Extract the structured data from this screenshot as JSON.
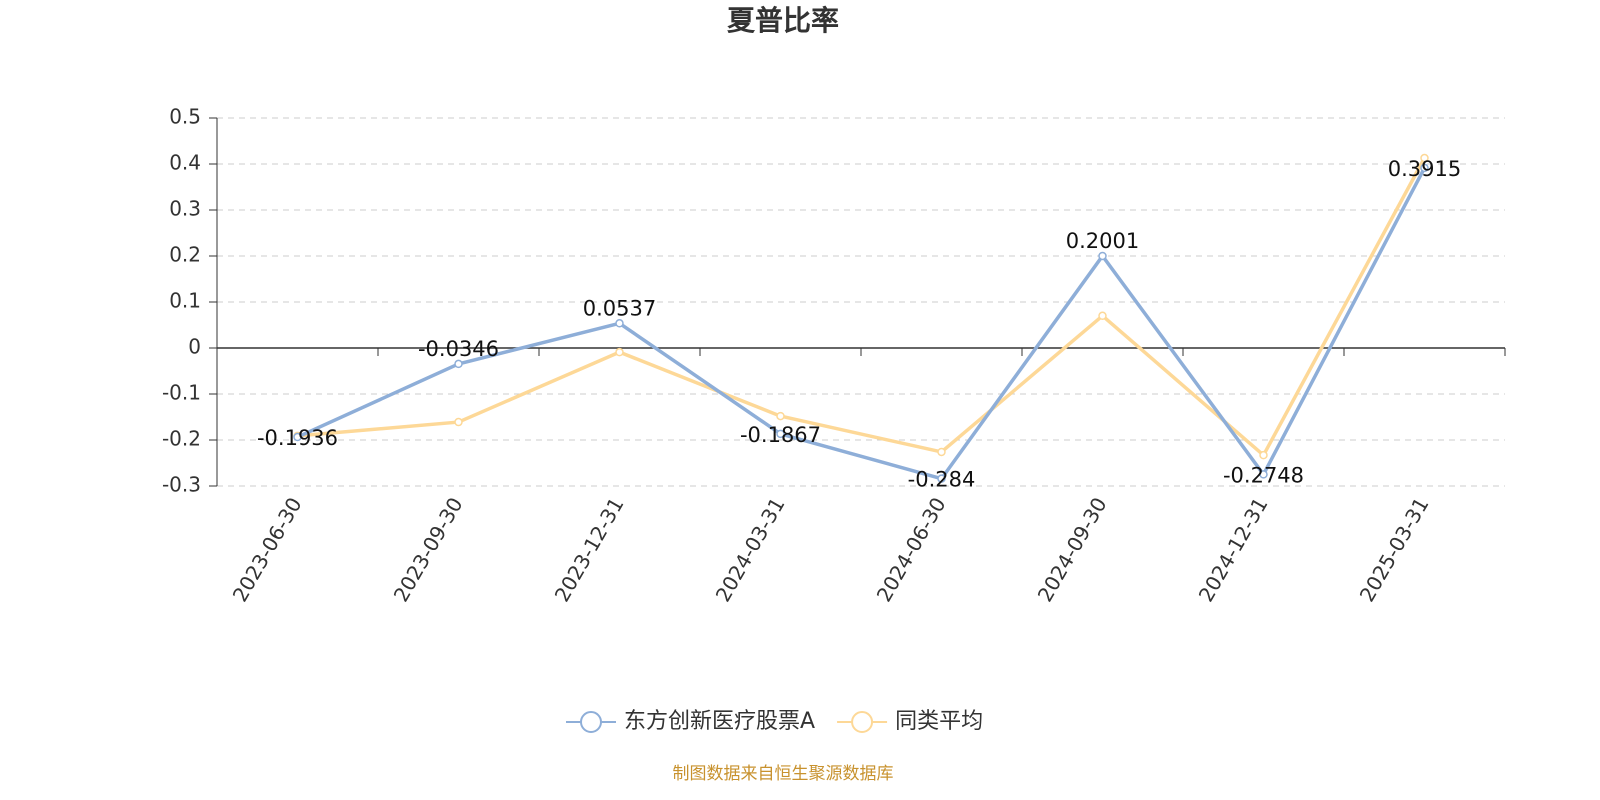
{
  "chart_data": {
    "type": "line",
    "title": "夏普比率",
    "categories": [
      "2023-06-30",
      "2023-09-30",
      "2023-12-31",
      "2024-03-31",
      "2024-06-30",
      "2024-09-30",
      "2024-12-31",
      "2025-03-31"
    ],
    "series": [
      {
        "name": "东方创新医疗股票A",
        "color": "#8eaed8",
        "values": [
          -0.1936,
          -0.0346,
          0.0537,
          -0.1867,
          -0.284,
          0.2001,
          -0.2748,
          0.3915
        ]
      },
      {
        "name": "同类平均",
        "color": "#fdd897",
        "values": [
          -0.191,
          -0.161,
          -0.009,
          -0.148,
          -0.226,
          0.07,
          -0.233,
          0.413
        ]
      }
    ],
    "ylim": [
      -0.3,
      0.5
    ],
    "yticks": [
      -0.3,
      -0.2,
      -0.1,
      0,
      0.1,
      0.2,
      0.3,
      0.4,
      0.5
    ],
    "grid": true,
    "source": "制图数据来自恒生聚源数据库"
  }
}
